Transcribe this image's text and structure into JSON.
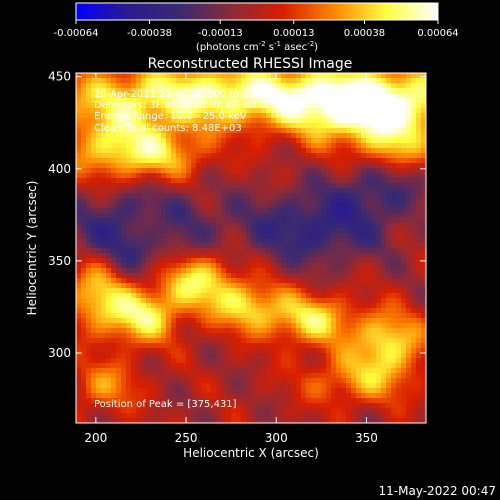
{
  "chart_data": {
    "type": "heatmap",
    "title": "Reconstructed RHESSI Image",
    "xlabel": "Heliocentric X (arcsec)",
    "ylabel": "Heliocentric Y (arcsec)",
    "xlim": [
      189,
      383
    ],
    "ylim": [
      262,
      452
    ],
    "xticks": [
      200,
      250,
      300,
      350
    ],
    "yticks": [
      300,
      350,
      400,
      450
    ],
    "colorbar": {
      "min": -0.00064,
      "max": 0.00064,
      "ticks": [
        "-0.00064",
        "-0.00038",
        "-0.00013",
        "0.00013",
        "0.00038",
        "0.00064"
      ],
      "tick_values": [
        -0.00064,
        -0.00038,
        -0.00013,
        0.00013,
        0.00038,
        0.00064
      ],
      "label_main": "(photons cm",
      "label_sup1": "-2",
      "label_mid1": " s",
      "label_sup2": "-1",
      "label_mid2": " asec",
      "label_sup3": "-2",
      "label_end": ")",
      "palette": [
        "#0000ff",
        "#2a1a8f",
        "#3a2a70",
        "#8a2a3a",
        "#d81e00",
        "#ff8800",
        "#ffff40",
        "#ffffff"
      ]
    },
    "annotations": [
      "20-Apr-2011 22:06:00.000 to 22:10:16.000",
      "Detectors: 3F 4F 5F 6F 7F 8F, All 0",
      "Energy Range: 12.0 - 25.0 keV",
      "Clean     Total counts: 8.48E+03"
    ],
    "peak_label": "Position of Peak = [375,431]",
    "peak": [
      375,
      431
    ],
    "grid": false,
    "emission_sources": [
      {
        "x": 270,
        "y": 440,
        "amp": 0.00058,
        "sx": 65,
        "sy": 12
      },
      {
        "x": 355,
        "y": 432,
        "amp": 0.00064,
        "sx": 30,
        "sy": 14
      },
      {
        "x": 210,
        "y": 412,
        "amp": 0.00042,
        "sx": 20,
        "sy": 14
      },
      {
        "x": 240,
        "y": 408,
        "amp": 0.0003,
        "sx": 18,
        "sy": 10
      },
      {
        "x": 255,
        "y": 340,
        "amp": 0.00052,
        "sx": 16,
        "sy": 12
      },
      {
        "x": 225,
        "y": 320,
        "amp": 0.00048,
        "sx": 14,
        "sy": 11
      },
      {
        "x": 200,
        "y": 333,
        "amp": 0.00044,
        "sx": 12,
        "sy": 14
      },
      {
        "x": 285,
        "y": 325,
        "amp": 0.0004,
        "sx": 14,
        "sy": 10
      },
      {
        "x": 320,
        "y": 318,
        "amp": 0.00044,
        "sx": 16,
        "sy": 10
      },
      {
        "x": 362,
        "y": 306,
        "amp": 0.00046,
        "sx": 14,
        "sy": 12
      },
      {
        "x": 345,
        "y": 285,
        "amp": 0.0003,
        "sx": 22,
        "sy": 10
      },
      {
        "x": 205,
        "y": 282,
        "amp": 0.00028,
        "sx": 14,
        "sy": 10
      },
      {
        "x": 232,
        "y": 368,
        "amp": 0.00022,
        "sx": 10,
        "sy": 8
      },
      {
        "x": 365,
        "y": 410,
        "amp": 0.00025,
        "sx": 12,
        "sy": 8
      },
      {
        "x": 225,
        "y": 365,
        "amp": -0.00038,
        "sx": 28,
        "sy": 18
      },
      {
        "x": 320,
        "y": 368,
        "amp": -0.00032,
        "sx": 28,
        "sy": 14
      },
      {
        "x": 355,
        "y": 388,
        "amp": -0.00022,
        "sx": 18,
        "sy": 12
      }
    ]
  },
  "footer": {
    "date": "11-May-2022 00:47"
  }
}
